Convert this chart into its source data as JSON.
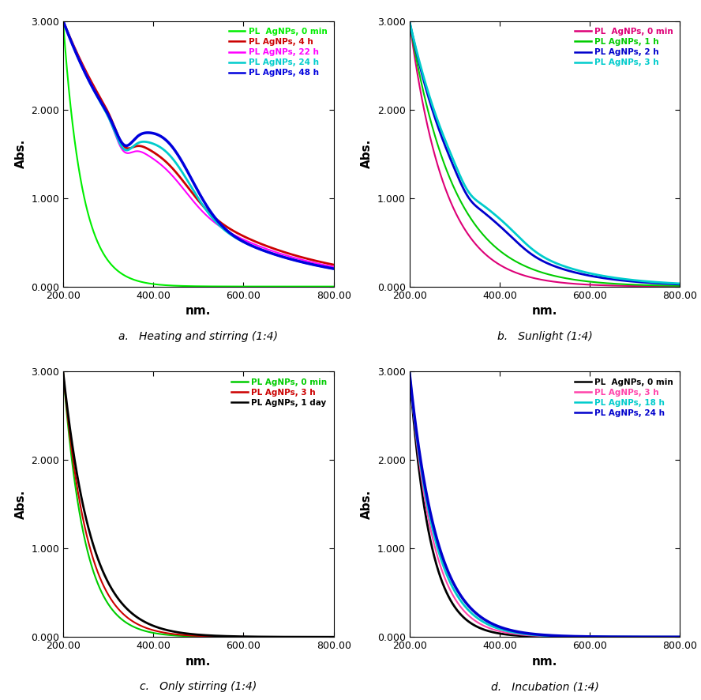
{
  "xlim": [
    200,
    800
  ],
  "ylim": [
    0,
    3.0
  ],
  "xlabel": "nm.",
  "ylabel": "Abs.",
  "xticks": [
    200,
    400,
    600,
    800
  ],
  "xtick_labels": [
    "200.00",
    "400.00",
    "600.00",
    "800.00"
  ],
  "yticks": [
    0.0,
    1.0,
    2.0,
    3.0
  ],
  "ytick_labels": [
    "0.000",
    "1.000",
    "2.000",
    "3.000"
  ],
  "panel_a": {
    "subtitle": "a.   Heating and stirring (1:4)",
    "legend_colors": [
      "#00ee00",
      "#cc0000",
      "#ff00ff",
      "#00cccc",
      "#0000dd"
    ],
    "legend_labels": [
      "PL  AgNPs, 0 min",
      "PL AgNPs, 4 h",
      "PL AgNPs, 22 h",
      "PL AgNPs, 24 h",
      "PL AgNPs, 48 h"
    ]
  },
  "panel_b": {
    "subtitle": "b.   Sunlight (1:4)",
    "legend_colors": [
      "#dd0077",
      "#00cc00",
      "#0000cc",
      "#00cccc"
    ],
    "legend_labels": [
      "PL  AgNPs, 0 min",
      "PL AgNPs, 1 h",
      "PL AgNPs, 2 h",
      "PL AgNPs, 3 h"
    ]
  },
  "panel_c": {
    "subtitle": "c.   Only stirring (1:4)",
    "legend_colors": [
      "#00cc00",
      "#cc0000",
      "#000000"
    ],
    "legend_labels": [
      "PL AgNPs, 0 min",
      "PL AgNPs, 3 h",
      "PL AgNPs, 1 day"
    ]
  },
  "panel_d": {
    "subtitle": "d.   Incubation (1:4)",
    "legend_colors": [
      "#000000",
      "#ff44aa",
      "#00cccc",
      "#0000cc"
    ],
    "legend_labels": [
      "PL  AgNPs, 0 min",
      "PL AgNPs, 3 h",
      "PL AgNPs, 18 h",
      "PL AgNPs, 24 h"
    ]
  }
}
